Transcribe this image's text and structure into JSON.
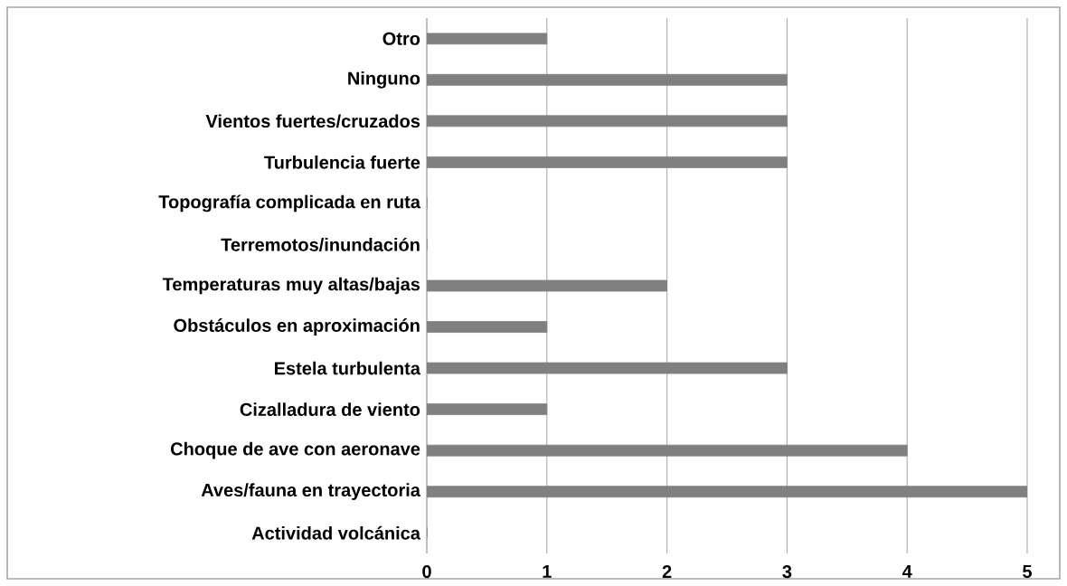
{
  "chart_data": {
    "type": "bar",
    "orientation": "horizontal",
    "categories": [
      "Otro",
      "Ninguno",
      "Vientos fuertes/cruzados",
      "Turbulencia fuerte",
      "Topografía complicada en ruta",
      "Terremotos/inundación",
      "Temperaturas muy altas/bajas",
      "Obstáculos en aproximación",
      "Estela turbulenta",
      "Cizalladura de viento",
      "Choque de ave con aeronave",
      "Aves/fauna en trayectoria",
      "Actividad volcánica"
    ],
    "values": [
      1,
      3,
      3,
      3,
      0,
      0,
      2,
      1,
      3,
      1,
      4,
      5,
      0
    ],
    "color": "#808080",
    "xlim": [
      0,
      5
    ],
    "xticks": [
      0,
      1,
      2,
      3,
      4,
      5
    ],
    "grid": "x"
  }
}
